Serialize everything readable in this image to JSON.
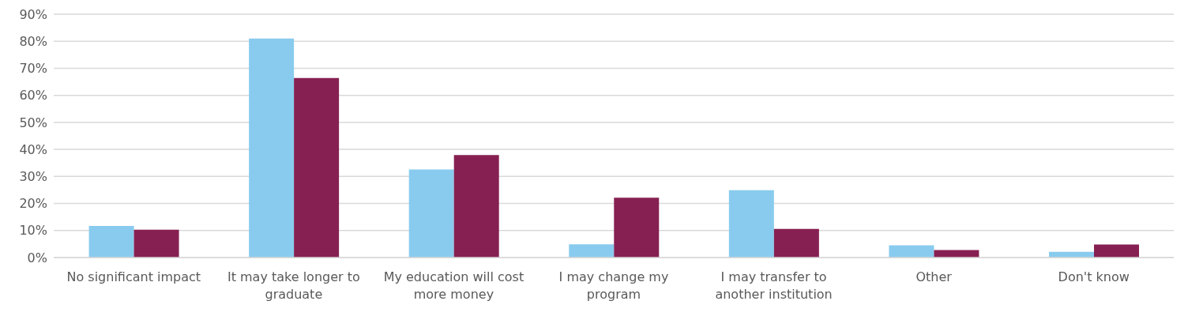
{
  "chart_data": {
    "type": "bar",
    "categories": [
      "No significant impact",
      "It may take longer to graduate",
      "My education will cost more money",
      "I may change my program",
      "I may transfer to another institution",
      "Other",
      "Don't know"
    ],
    "series": [
      {
        "color": "#89cbee",
        "values": [
          11.7,
          81,
          32.6,
          4.9,
          24.9,
          4.5,
          2.1
        ]
      },
      {
        "color": "#872052",
        "values": [
          10.3,
          66.4,
          37.9,
          22.1,
          10.6,
          2.8,
          4.8
        ]
      }
    ],
    "ylim": [
      0,
      90
    ],
    "yticks": [
      {
        "value": 0,
        "label": "0%"
      },
      {
        "value": 10,
        "label": "10%"
      },
      {
        "value": 20,
        "label": "20%"
      },
      {
        "value": 30,
        "label": "30%"
      },
      {
        "value": 40,
        "label": "40%"
      },
      {
        "value": 50,
        "label": "50%"
      },
      {
        "value": 60,
        "label": "60%"
      },
      {
        "value": 70,
        "label": "70%"
      },
      {
        "value": 80,
        "label": "80%"
      },
      {
        "value": 90,
        "label": "90%"
      }
    ],
    "grid": "y",
    "legend": false
  }
}
